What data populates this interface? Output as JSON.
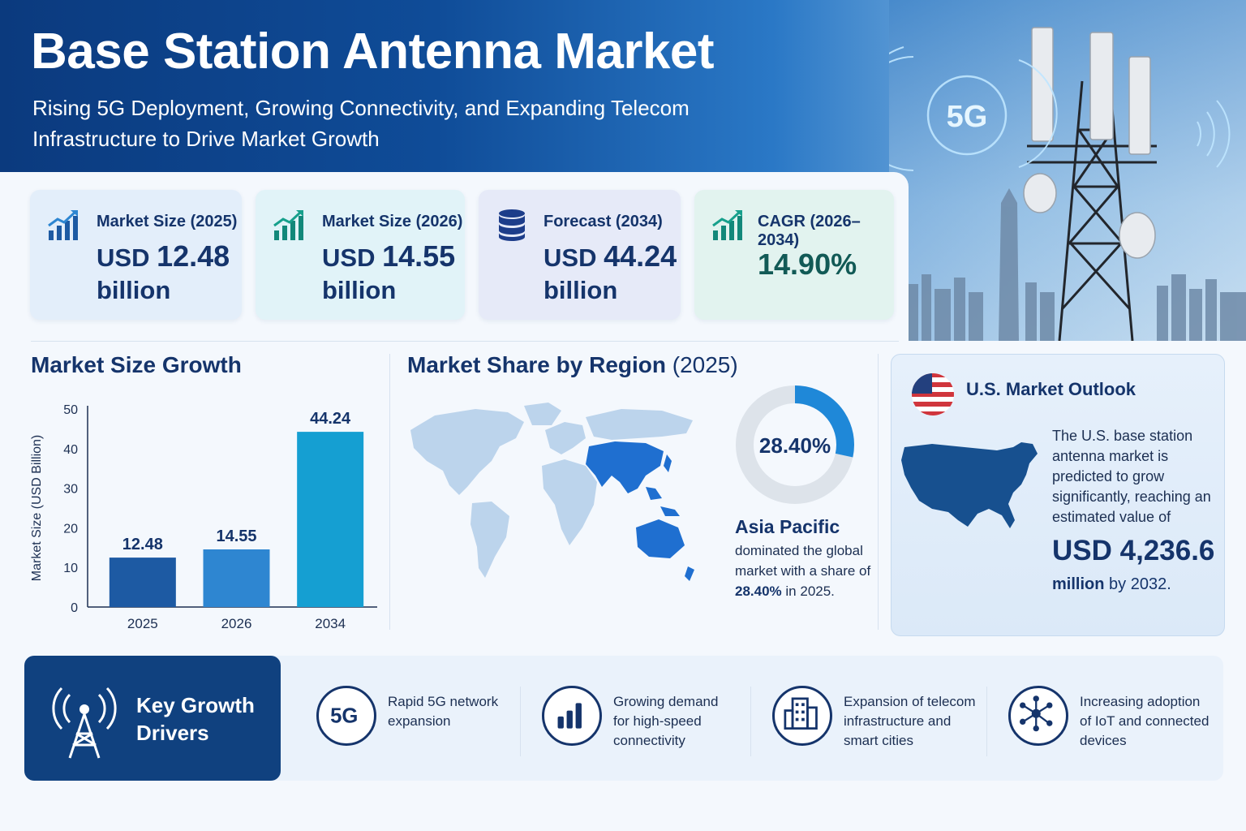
{
  "header": {
    "title": "Base Station Antenna Market",
    "subtitle": "Rising 5G Deployment, Growing Connectivity, and Expanding Telecom Infrastructure to Drive Market Growth",
    "badge": "5G"
  },
  "kpis": [
    {
      "label": "Market Size (2025)",
      "currency": "USD",
      "number": "12.48",
      "unit": "billion",
      "icon": "growth-chart-icon",
      "color": "#e3eefa"
    },
    {
      "label": "Market Size (2026)",
      "currency": "USD",
      "number": "14.55",
      "unit": "billion",
      "icon": "growth-chart-icon",
      "color": "#e1f3f8"
    },
    {
      "label": "Forecast (2034)",
      "currency": "USD",
      "number": "44.24",
      "unit": "billion",
      "icon": "database-icon",
      "color": "#e6eaf8"
    },
    {
      "label": "CAGR (2026–2034)",
      "number": "14.90%",
      "icon": "growth-chart-icon",
      "color": "#e2f3ef"
    }
  ],
  "growth": {
    "title": "Market Size Growth"
  },
  "chart_data": {
    "type": "bar",
    "categories": [
      "2025",
      "2026",
      "2034"
    ],
    "values": [
      12.48,
      14.55,
      44.24
    ],
    "value_labels": [
      "12.48",
      "14.55",
      "44.24"
    ],
    "colors": [
      "#1d5aa3",
      "#2e86d1",
      "#159fd2"
    ],
    "ylabel": "Market Size (USD Billion)",
    "ylim": [
      0,
      50
    ],
    "yticks": [
      "0",
      "10",
      "20",
      "30",
      "40",
      "50"
    ],
    "grid": false
  },
  "region": {
    "title": "Market Share by Region",
    "year": "(2025)",
    "share": "28.40%",
    "share_fraction": 0.284,
    "region_name": "Asia Pacific",
    "text_a": "dominated the global market with a share of",
    "text_share": "28.40%",
    "text_b": "in 2025."
  },
  "us": {
    "title": "U.S. Market Outlook",
    "text": "The U.S. base station antenna market is predicted to grow significantly, reaching an estimated value of",
    "value": "USD 4,236.6",
    "unit": "million",
    "by": "by 2032."
  },
  "drivers": {
    "title": "Key Growth Drivers",
    "items": [
      {
        "text": "Rapid 5G network expansion",
        "icon": "5g-icon",
        "glyph": "5G"
      },
      {
        "text": "Growing demand for high-speed connectivity",
        "icon": "signal-bars-icon"
      },
      {
        "text": "Expansion of telecom infrastructure and smart cities",
        "icon": "buildings-icon"
      },
      {
        "text": "Increasing adoption of IoT and connected devices",
        "icon": "network-nodes-icon"
      }
    ]
  }
}
